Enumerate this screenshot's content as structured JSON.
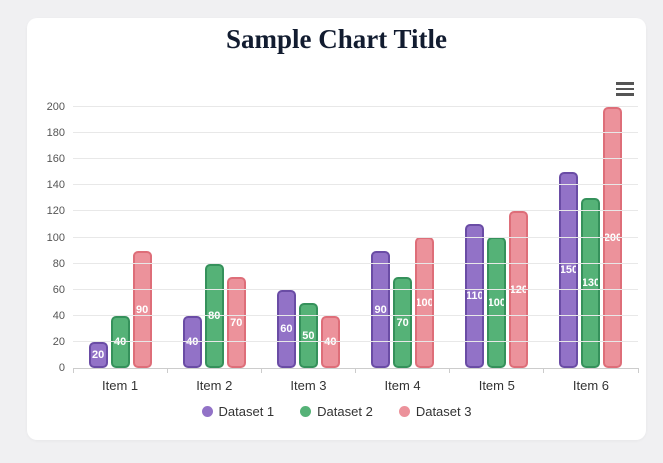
{
  "page": {
    "background_color": "#f0f0f2",
    "card_background_color": "#ffffff"
  },
  "menu": {
    "icon": "hamburger-menu-icon",
    "color": "#555555"
  },
  "chart_data": {
    "type": "bar",
    "title": "Sample Chart Title",
    "title_color": "#121c30",
    "categories": [
      "Item 1",
      "Item 2",
      "Item 3",
      "Item 4",
      "Item 5",
      "Item 6"
    ],
    "series": [
      {
        "name": "Dataset 1",
        "values": [
          20,
          40,
          60,
          90,
          110,
          150
        ],
        "fill": "#9272c7",
        "border": "#6a4ca5"
      },
      {
        "name": "Dataset 2",
        "values": [
          40,
          80,
          50,
          70,
          100,
          130
        ],
        "fill": "#55b277",
        "border": "#35915b"
      },
      {
        "name": "Dataset 3",
        "values": [
          90,
          70,
          40,
          100,
          120,
          200
        ],
        "fill": "#ec929b",
        "border": "#de6e79"
      }
    ],
    "xlabel": "",
    "ylabel": "",
    "ylim": [
      0,
      200
    ],
    "yticks": [
      0,
      20,
      40,
      60,
      80,
      100,
      120,
      140,
      160,
      180,
      200
    ],
    "grid": true,
    "grid_color": "#e8e8e8",
    "axis_line_color": "#cccccc",
    "value_labels": true,
    "value_label_color": "#ffffff",
    "legend_position": "bottom",
    "legend_marker": "circle"
  }
}
